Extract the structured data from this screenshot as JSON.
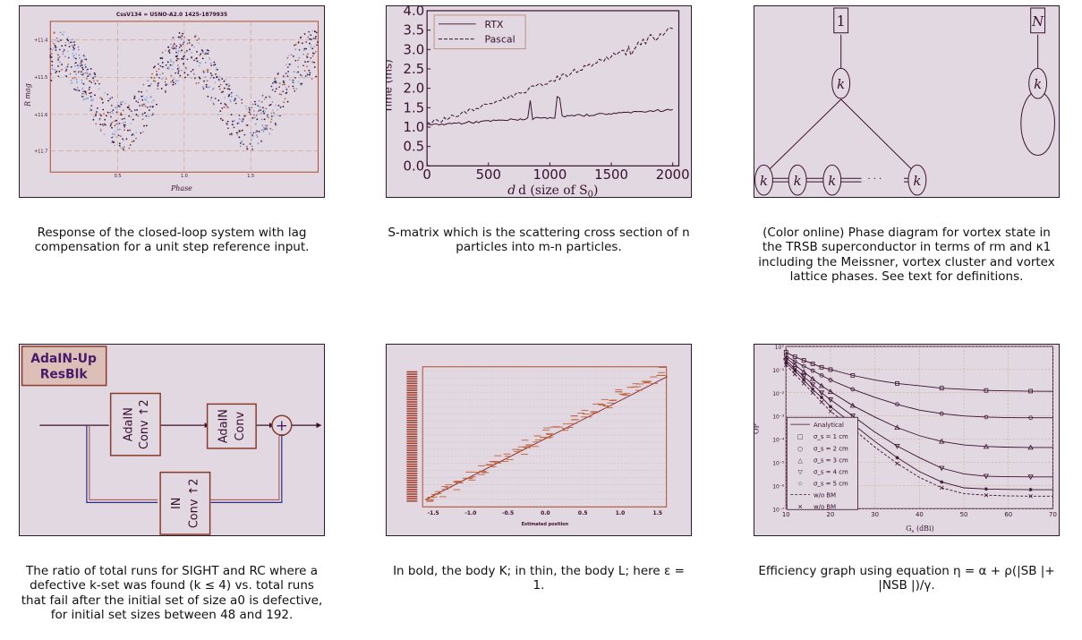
{
  "captions": {
    "c1": "Response of the closed-loop system with lag compensation for a unit step reference input.",
    "c2": "S-matrix which is the scattering cross section of n particles into m-n particles.",
    "c3": "(Color online) Phase diagram for vortex state in the TRSB superconductor in terms of rm and κ1 including the Meissner, vortex cluster and vortex lattice phases. See text for definitions.",
    "c4": "The ratio of total runs for SIGHT and RC where a defective k-set was found (k ≤ 4) vs. total runs that fail after the initial set of size a0 is defective, for initial set sizes between 48 and 192.",
    "c5": "In bold, the body K; in thin, the body L; here ε = 1.",
    "c6": "Efficiency graph using equation η = α + ρ(|SB |+ |NSB |)/γ."
  },
  "fig1": {
    "title": "CssV134 = USNO-A2.0 1425-1879935",
    "ylabel": "R mag",
    "xlabel": "Phase",
    "yticks": [
      "+11.4",
      "+11.5",
      "+11.6",
      "+11.7"
    ],
    "xticks": [
      "0.5",
      "1.0",
      "1.5"
    ]
  },
  "fig2": {
    "xlabel": "d (size of S",
    "xlabel_sub": "0",
    "xlabel_end": ")",
    "ylabel": "Time (ms)",
    "yticks": [
      "0.0",
      "0.5",
      "1.0",
      "1.5",
      "2.0",
      "2.5",
      "3.0",
      "3.5",
      "4.0"
    ],
    "xticks": [
      "0",
      "500",
      "1000",
      "1500",
      "2000"
    ],
    "legend": [
      "RTX",
      "Pascal"
    ]
  },
  "fig3": {
    "top_labels": [
      "1",
      "N"
    ],
    "node_label": "k",
    "ellipsis": "· · ·"
  },
  "fig4": {
    "title_line1": "AdaIN-Up",
    "title_line2": "ResBlk",
    "box1_line1": "AdaIN",
    "box1_line2": "Conv ↑2",
    "box2_line1": "AdaIN",
    "box2_line2": "Conv",
    "box3_line1": "IN",
    "box3_line2": "Conv ↑2",
    "plus": "+"
  },
  "fig5": {
    "xlabel": "Estimated position",
    "xticks": [
      "-1.5",
      "-1.0",
      "-0.5",
      "0.0",
      "0.5",
      "1.0",
      "1.5"
    ]
  },
  "fig6": {
    "xlabel": "G",
    "xlabel_sub": "s",
    "xlabel_end": " (dBi)",
    "ylabel": "OP",
    "yticks": [
      "10°",
      "10⁻¹",
      "10⁻²",
      "10⁻³",
      "10⁻⁴",
      "10⁻⁵",
      "10⁻⁶",
      "10⁻⁷"
    ],
    "xticks": [
      "10",
      "20",
      "30",
      "40",
      "50",
      "60",
      "70"
    ],
    "legend": [
      "Analytical",
      "σ_s = 1 cm",
      "σ_s = 2 cm",
      "σ_s = 3 cm",
      "σ_s = 4 cm",
      "σ_s = 5 cm",
      "w/o BM",
      "w/o BM"
    ],
    "chart_data": {
      "type": "line",
      "x": [
        10,
        12,
        14,
        16,
        18,
        20,
        25,
        30,
        35,
        40,
        45,
        50,
        55,
        60,
        65,
        70
      ],
      "xlim": [
        10,
        70
      ],
      "ylim_log10": [
        -7,
        0
      ],
      "series": [
        {
          "name": "σs = 1 cm",
          "log10_values": [
            -0.25,
            -0.45,
            -0.6,
            -0.75,
            -0.9,
            -1.0,
            -1.25,
            -1.45,
            -1.6,
            -1.7,
            -1.8,
            -1.85,
            -1.9,
            -1.92,
            -1.93,
            -1.94
          ]
        },
        {
          "name": "σs = 2 cm",
          "log10_values": [
            -0.4,
            -0.65,
            -0.85,
            -1.05,
            -1.25,
            -1.45,
            -1.85,
            -2.2,
            -2.5,
            -2.75,
            -2.9,
            -3.0,
            -3.05,
            -3.07,
            -3.08,
            -3.08
          ]
        },
        {
          "name": "σs = 3 cm",
          "log10_values": [
            -0.5,
            -0.8,
            -1.1,
            -1.4,
            -1.7,
            -1.95,
            -2.55,
            -3.05,
            -3.5,
            -3.85,
            -4.1,
            -4.25,
            -4.32,
            -4.35,
            -4.36,
            -4.36
          ]
        },
        {
          "name": "σs = 4 cm",
          "log10_values": [
            -0.6,
            -0.95,
            -1.3,
            -1.65,
            -2.0,
            -2.3,
            -3.0,
            -3.7,
            -4.3,
            -4.8,
            -5.25,
            -5.5,
            -5.6,
            -5.62,
            -5.63,
            -5.63
          ]
        },
        {
          "name": "σs = 5 cm",
          "log10_values": [
            -0.7,
            -1.05,
            -1.45,
            -1.85,
            -2.2,
            -2.6,
            -3.35,
            -4.1,
            -4.8,
            -5.4,
            -5.85,
            -6.1,
            -6.15,
            -6.17,
            -6.18,
            -6.18
          ]
        },
        {
          "name": "w/o BM",
          "log10_values": [
            -0.8,
            -1.2,
            -1.6,
            -2.0,
            -2.4,
            -2.8,
            -3.55,
            -4.35,
            -5.05,
            -5.65,
            -6.1,
            -6.35,
            -6.42,
            -6.45,
            -6.46,
            -6.46
          ]
        }
      ]
    }
  }
}
